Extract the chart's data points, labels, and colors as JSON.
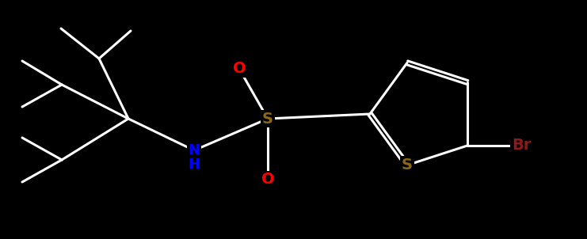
{
  "bg_color": "#000000",
  "bond_color": "#ffffff",
  "bond_width": 2.2,
  "fig_width": 7.41,
  "fig_height": 3.02,
  "dpi": 100,
  "colors": {
    "O": "#ff0000",
    "S": "#8B6914",
    "N": "#0000ff",
    "Br": "#8b1a1a",
    "C": "#ffffff"
  }
}
